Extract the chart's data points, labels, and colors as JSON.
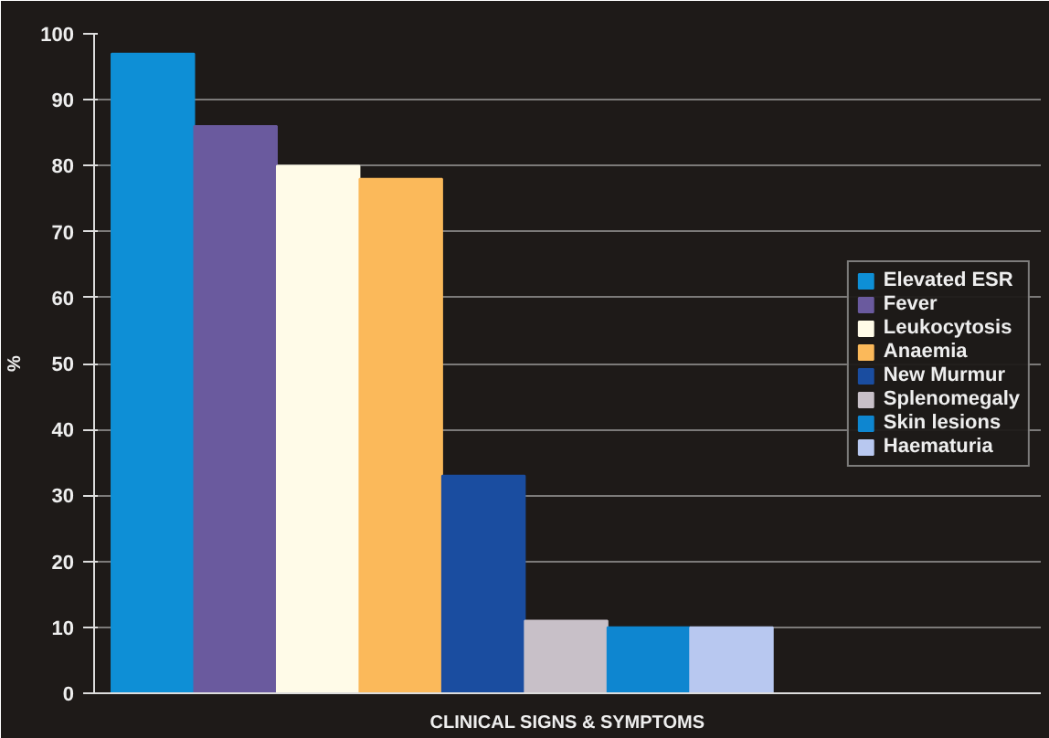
{
  "chart_data": {
    "type": "bar",
    "xlabel": "CLINICAL SIGNS & SYMPTOMS",
    "ylabel": "%",
    "categories": [
      null
    ],
    "series": [
      {
        "name": "Elevated ESR",
        "color": "#0e8fd6",
        "values": [
          97
        ]
      },
      {
        "name": "Fever",
        "color": "#6a5a9e",
        "values": [
          86
        ]
      },
      {
        "name": "Leukocytosis",
        "color": "#fffbe8",
        "values": [
          80
        ]
      },
      {
        "name": "Anaemia",
        "color": "#fbb95a",
        "values": [
          78
        ]
      },
      {
        "name": "New Murmur",
        "color": "#1a4da0",
        "values": [
          33
        ]
      },
      {
        "name": "Splenomegaly",
        "color": "#c8c0c8",
        "values": [
          11
        ]
      },
      {
        "name": "Skin lesions",
        "color": "#0e86d0",
        "values": [
          10
        ]
      },
      {
        "name": "Haematuria",
        "color": "#b8c8f0",
        "values": [
          10
        ]
      }
    ],
    "ylim": [
      0,
      100
    ],
    "yticks": [
      0,
      10,
      20,
      30,
      40,
      50,
      60,
      70,
      80,
      90,
      100
    ],
    "grid": "y",
    "legend": "right"
  }
}
